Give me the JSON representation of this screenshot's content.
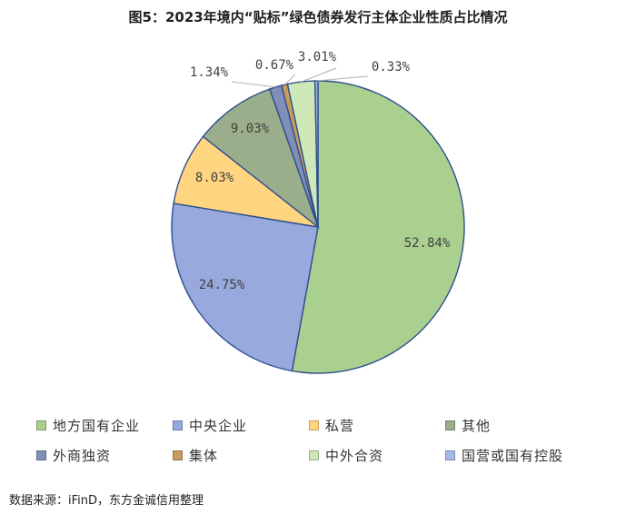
{
  "chart_data": {
    "type": "pie",
    "title": "图5：2023年境内“贴标”绿色债券发行主体企业性质占比情况",
    "slices": [
      {
        "name": "地方国有企业",
        "value": 52.84,
        "label": "52.84%",
        "color": "#a9d08e"
      },
      {
        "name": "中央企业",
        "value": 24.75,
        "label": "24.75%",
        "color": "#97a9dd"
      },
      {
        "name": "私营",
        "value": 8.03,
        "label": "8.03%",
        "color": "#ffd580"
      },
      {
        "name": "其他",
        "value": 9.03,
        "label": "9.03%",
        "color": "#9aae8c"
      },
      {
        "name": "外商独资",
        "value": 1.34,
        "label": "1.34%",
        "color": "#7f8fb5"
      },
      {
        "name": "集体",
        "value": 0.67,
        "label": "0.67%",
        "color": "#c79d5c"
      },
      {
        "name": "中外合资",
        "value": 3.01,
        "label": "3.01%",
        "color": "#cfe8b8"
      },
      {
        "name": "国营或国有控股",
        "value": 0.33,
        "label": "0.33%",
        "color": "#a5b9e8"
      }
    ],
    "legend_position": "bottom"
  },
  "source": "数据来源：iFinD，东方金诚信用整理"
}
